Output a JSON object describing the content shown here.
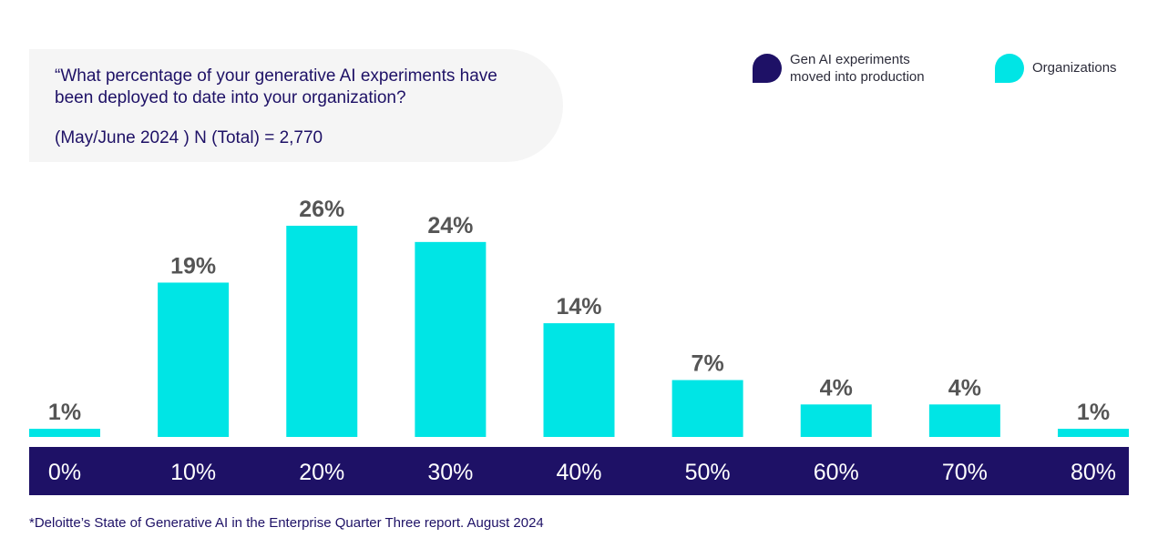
{
  "question": {
    "text": "“What percentage of your generative AI experiments have been deployed to date into your organization?",
    "meta": "(May/June 2024 ) N (Total) = 2,770"
  },
  "legend": [
    {
      "label": "Gen AI experiments moved into production",
      "color": "#1e1166"
    },
    {
      "label": "Organizations",
      "color": "#00e5e5"
    }
  ],
  "colors": {
    "bar": "#00e5e5",
    "axis_band": "#1e1166",
    "value_label": "#555555",
    "tick_label": "#ffffff"
  },
  "chart_data": {
    "type": "bar",
    "title": "“What percentage of your generative AI experiments have been deployed to date into your organization?",
    "xlabel": "Gen AI experiments moved into production",
    "ylabel": "Organizations",
    "categories": [
      "0%",
      "10%",
      "20%",
      "30%",
      "40%",
      "50%",
      "60%",
      "70%",
      "80%"
    ],
    "values": [
      1,
      19,
      26,
      24,
      14,
      7,
      4,
      4,
      1
    ],
    "value_labels": [
      "1%",
      "19%",
      "26%",
      "24%",
      "14%",
      "7%",
      "4%",
      "4%",
      "1%"
    ],
    "ylim": [
      0,
      26
    ],
    "grid": false
  },
  "footnote": "*Deloitte’s State of Generative AI in the Enterprise Quarter Three report. August 2024"
}
